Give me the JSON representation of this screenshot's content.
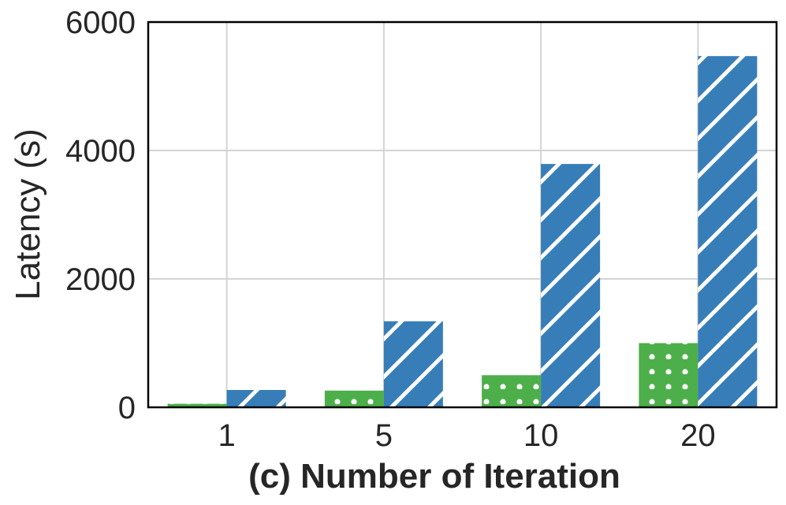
{
  "chart_data": {
    "type": "bar",
    "title": "",
    "xlabel": "(c) Number of Iteration",
    "ylabel": "Latency (s)",
    "categories": [
      "1",
      "5",
      "10",
      "20"
    ],
    "ylim": [
      0,
      6000
    ],
    "yticks": [
      "0",
      "2000",
      "4000",
      "6000"
    ],
    "grid": true,
    "legend": "none",
    "series": [
      {
        "values": [
          55,
          260,
          500,
          1000
        ],
        "color": "#4daf4a",
        "pattern": "dots"
      },
      {
        "values": [
          270,
          1340,
          3790,
          5470
        ],
        "color": "#377eb8",
        "pattern": "diagonal-stripes"
      }
    ]
  }
}
